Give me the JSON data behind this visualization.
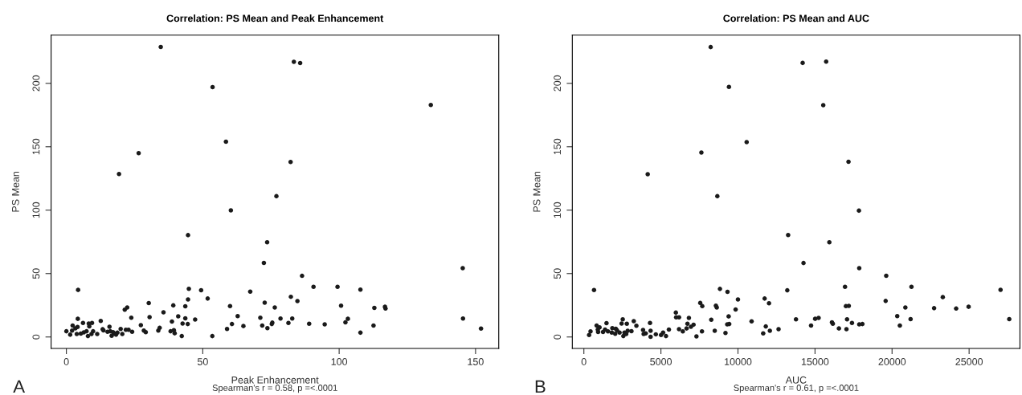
{
  "chart_data": [
    {
      "type": "scatter",
      "title": "Correlation: PS Mean and Peak Enhancement",
      "xlabel": "Peak Enhancement",
      "ylabel": "PS Mean",
      "annotations": [
        "Spearman's r = 0.58, p =<.0001",
        "A"
      ],
      "xlim": [
        -5.6,
        158.5
      ],
      "ylim": [
        -9,
        238
      ],
      "xticks": [
        0,
        50,
        100,
        150
      ],
      "yticks": [
        0,
        50,
        100,
        150,
        200
      ],
      "grid": false,
      "marker": "circle",
      "series": [
        {
          "color": "#1a1a1a",
          "x": [
            34.6,
            83.4,
            85.7,
            53.6,
            133.6,
            58.5,
            26.5,
            82.2,
            19.3,
            77,
            60.3,
            44.6,
            73.6,
            72.4,
            145.3,
            86.4,
            90.6,
            99.4,
            4.3,
            44.9,
            49.4,
            107.8,
            67.4,
            51.8,
            82.3,
            84.7,
            44.6,
            72.7,
            30.2,
            100.7,
            112.9,
            116.8,
            117,
            76.4,
            60,
            39.2,
            43.6,
            22.3,
            21.4,
            35.6,
            23.8,
            30.5,
            41,
            62.8,
            71.1,
            78.5,
            82.8,
            103.2,
            145.4,
            12.6,
            4.2,
            6.1,
            8.2,
            9.4,
            43.6,
            44.5,
            47.2,
            38.7,
            42.6,
            60.7,
            64.9,
            75.5,
            75.3,
            81.4,
            89,
            94.7,
            102.3,
            112.6,
            71.8,
            73.7,
            58.9,
            152,
            107.8,
            53.5,
            42.3,
            39.7,
            38.2,
            39.4,
            33.7,
            34.2,
            27.3,
            28.4,
            29.1,
            24.1,
            22.8,
            21.8,
            20.5,
            19.9,
            18.7,
            17.7,
            16.6,
            15.8,
            15.1,
            16.1,
            13.6,
            13.3,
            11.3,
            9.8,
            9.2,
            7.9,
            7.4,
            6.4,
            5.3,
            3.8,
            1.4,
            0,
            2.3,
            3.3,
            4.1,
            8.4,
            2.1,
            17.1,
            18.2
          ],
          "values": [
            228.7,
            217,
            216,
            197,
            183,
            154,
            145,
            138,
            128.5,
            111,
            99.8,
            80.3,
            74.7,
            58.4,
            54.3,
            48.2,
            39.6,
            39.6,
            37.1,
            38,
            36.9,
            37.3,
            35.7,
            30.3,
            31.7,
            28.3,
            29.6,
            27.1,
            26.7,
            24.7,
            22.9,
            23.8,
            22.4,
            23.3,
            24.4,
            24.9,
            24.2,
            23.3,
            21.5,
            19.5,
            15.2,
            15.6,
            16.3,
            16.5,
            15.2,
            14.5,
            14.5,
            14.3,
            14.5,
            12.7,
            14.3,
            11.1,
            10.6,
            11.1,
            14.7,
            10.2,
            13.8,
            12.2,
            10.6,
            10.2,
            8.6,
            11.3,
            10.2,
            11.1,
            10.4,
            10,
            11.5,
            9,
            9,
            7,
            6.3,
            6.6,
            3.4,
            0.7,
            0.7,
            2.9,
            4.5,
            5.4,
            5,
            7.2,
            9.3,
            5,
            3.8,
            4.1,
            5.7,
            5.7,
            2.3,
            6.3,
            3.4,
            2.7,
            0.9,
            8.1,
            4.1,
            4.5,
            5.2,
            6.1,
            2.3,
            4.5,
            2.3,
            0.7,
            4.5,
            3.6,
            2.7,
            2.3,
            1.8,
            4.5,
            9,
            6.8,
            7.9,
            8.4,
            5,
            3.8,
            1.8
          ]
        }
      ]
    },
    {
      "type": "scatter",
      "title": "Correlation: PS Mean and AUC",
      "xlabel": "AUC",
      "ylabel": "PS Mean",
      "annotations": [
        "Spearman's r = 0.61, p =<.0001",
        "B"
      ],
      "xlim": [
        -750,
        28300
      ],
      "ylim": [
        -9,
        238
      ],
      "xticks": [
        0,
        5000,
        10000,
        15000,
        20000,
        25000
      ],
      "yticks": [
        0,
        50,
        100,
        150,
        200
      ],
      "grid": false,
      "marker": "circle",
      "series": [
        {
          "color": "#1a1a1a",
          "x": [
            8229,
            14198,
            15723,
            9415,
            15535,
            10564,
            7626,
            17173,
            4143,
            8662,
            17851,
            13256,
            15930,
            14254,
            17870,
            19621,
            659,
            8831,
            9321,
            13200,
            16947,
            21259,
            27040,
            9999,
            11731,
            12014,
            23293,
            7551,
            7683,
            8568,
            8624,
            9848,
            17004,
            17192,
            19584,
            20864,
            22728,
            24159,
            24969,
            5969,
            5988,
            6176,
            6816,
            8266,
            9396,
            9302,
            9434,
            10884,
            13765,
            15008,
            15234,
            20336,
            21203,
            27605,
            17079,
            16100,
            16156,
            17399,
            17870,
            18077,
            14744,
            16552,
            17041,
            20506,
            11806,
            12070,
            12635,
            11637,
            8492,
            9189,
            7664,
            7306,
            7118,
            6722,
            6666,
            6421,
            6176,
            6948,
            5517,
            5329,
            5141,
            5009,
            4670,
            4331,
            4293,
            4331,
            4011,
            3841,
            3879,
            3408,
            3239,
            3088,
            2787,
            2843,
            2523,
            2448,
            2561,
            2636,
            2749,
            2316,
            2147,
            2034,
            2071,
            1845,
            1808,
            1563,
            1469,
            1375,
            1243,
            1017,
            923,
            828,
            904,
            433,
            339
          ],
          "values": [
            228.6,
            216.1,
            217.1,
            197.2,
            182.8,
            153.7,
            145.4,
            138.2,
            128.3,
            111,
            99.6,
            80.4,
            74.7,
            58.3,
            54.3,
            48.3,
            37,
            37.9,
            35.6,
            36.8,
            39.5,
            39.5,
            37.2,
            29.6,
            30.3,
            26.6,
            31.4,
            26.8,
            24.3,
            24.7,
            23.3,
            21.7,
            24.3,
            24.5,
            28.4,
            23.3,
            22.7,
            22.4,
            23.8,
            19.2,
            15.5,
            15.5,
            15,
            13.6,
            16.2,
            9.9,
            10.2,
            12.3,
            13.9,
            14.3,
            15,
            16.4,
            14.1,
            14.1,
            13.9,
            11.6,
            10.4,
            11.1,
            9.9,
            10.2,
            9,
            6.7,
            6.2,
            9,
            8.3,
            4.9,
            6.2,
            2.8,
            4.9,
            3.2,
            4.4,
            0.5,
            9.7,
            10.4,
            6.7,
            4.4,
            6.2,
            8.1,
            5.8,
            0.7,
            3.5,
            1.6,
            2.1,
            0.2,
            11.1,
            4.9,
            2.8,
            5.5,
            2.3,
            8.8,
            12.5,
            4.6,
            10.4,
            4.9,
            13.9,
            10.6,
            0.7,
            3.5,
            2.3,
            3.5,
            5.3,
            2.5,
            6.5,
            6.9,
            3.5,
            4.4,
            10.9,
            5.8,
            3.9,
            7.6,
            3.9,
            9,
            5.8,
            4.4,
            1.6
          ]
        }
      ]
    }
  ]
}
